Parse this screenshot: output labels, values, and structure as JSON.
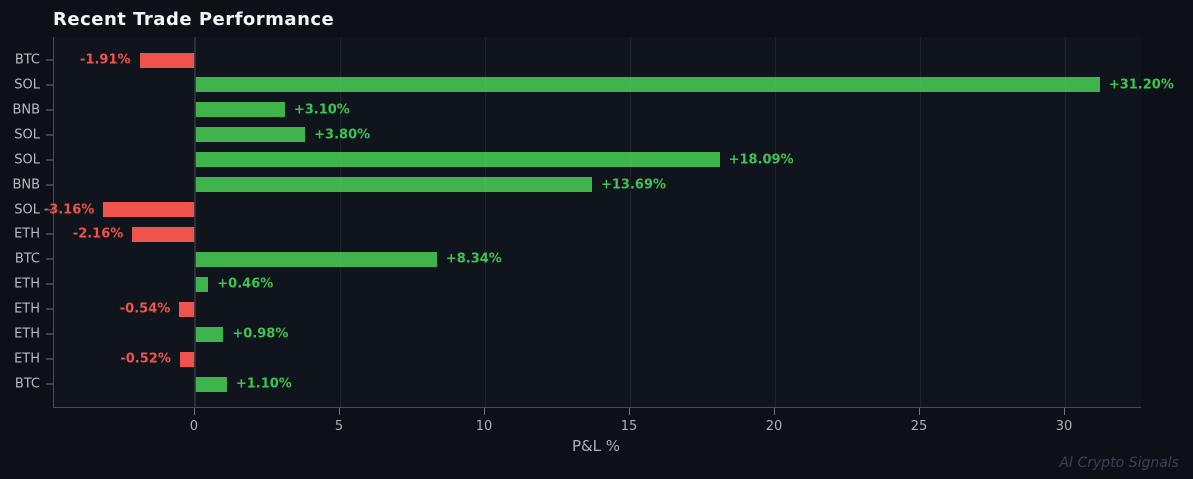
{
  "title": "Recent Trade Performance",
  "watermark": "AI Crypto Signals",
  "colors": {
    "background": "#0d1117",
    "plot_background": "#10141c",
    "positive_bar": "#3fb44c",
    "negative_bar": "#f0534b",
    "positive_label": "#3dc453",
    "negative_label": "#f1534c",
    "axis_spine": "#454e5d",
    "tick_text": "#a8b0bc",
    "category_text": "#b4bbc7",
    "title_text": "#f2f5f8",
    "watermark_text": "#3a4150"
  },
  "chart_data": {
    "type": "bar",
    "orientation": "horizontal",
    "title": "Recent Trade Performance",
    "xlabel": "P&L %",
    "ylabel": "",
    "categories": [
      "BTC",
      "SOL",
      "BNB",
      "SOL",
      "SOL",
      "BNB",
      "SOL",
      "ETH",
      "BTC",
      "ETH",
      "ETH",
      "ETH",
      "ETH",
      "BTC"
    ],
    "values": [
      -1.91,
      31.2,
      3.1,
      3.8,
      18.09,
      13.69,
      -3.16,
      -2.16,
      8.34,
      0.46,
      -0.54,
      0.98,
      -0.52,
      1.1
    ],
    "value_labels": [
      "-1.91%",
      "+31.20%",
      "+3.10%",
      "+3.80%",
      "+18.09%",
      "+13.69%",
      "-3.16%",
      "-2.16%",
      "+8.34%",
      "+0.46%",
      "-0.54%",
      "+0.98%",
      "-0.52%",
      "+1.10%"
    ],
    "xticks": [
      0,
      5,
      10,
      15,
      20,
      25,
      30
    ],
    "xlim": [
      -4.86,
      32.62
    ],
    "grid": true,
    "legend": false
  }
}
